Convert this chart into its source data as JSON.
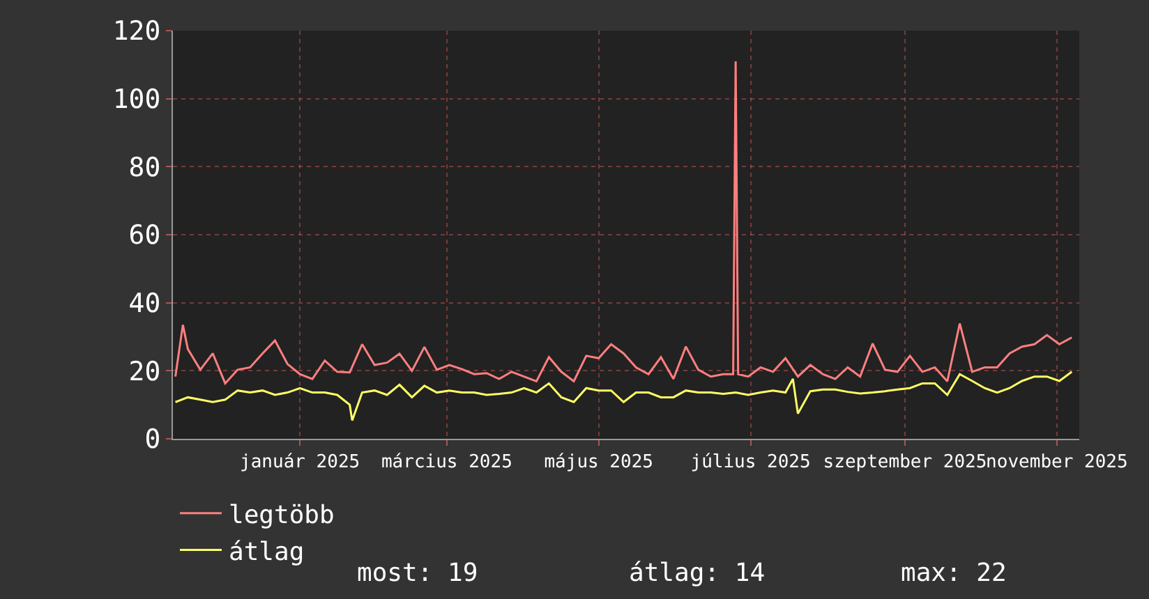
{
  "chart_data": {
    "type": "line",
    "xlim": [
      "2024-11-11",
      "2025-11-10"
    ],
    "ylim": [
      0,
      120
    ],
    "yticks": [
      0,
      20,
      40,
      60,
      80,
      100,
      120
    ],
    "xticks": [
      {
        "value": "2025-01-01",
        "label": "január 2025"
      },
      {
        "value": "2025-03-01",
        "label": "március 2025"
      },
      {
        "value": "2025-05-01",
        "label": "május 2025"
      },
      {
        "value": "2025-07-01",
        "label": "július 2025"
      },
      {
        "value": "2025-09-01",
        "label": "szeptember 2025"
      },
      {
        "value": "2025-11-01",
        "label": "november 2025"
      }
    ],
    "grid": true,
    "legend": "bottom left",
    "line_style": "solid",
    "marker": "none",
    "series": [
      {
        "name": "legtöbb",
        "color": "#ff7f7f",
        "x": [
          "2024-11-12",
          "2024-11-15",
          "2024-11-17",
          "2024-11-22",
          "2024-11-27",
          "2024-12-02",
          "2024-12-07",
          "2024-12-12",
          "2024-12-17",
          "2024-12-22",
          "2024-12-27",
          "2025-01-01",
          "2025-01-06",
          "2025-01-11",
          "2025-01-16",
          "2025-01-21",
          "2025-01-26",
          "2025-01-31",
          "2025-02-05",
          "2025-02-10",
          "2025-02-15",
          "2025-02-20",
          "2025-02-25",
          "2025-03-02",
          "2025-03-07",
          "2025-03-12",
          "2025-03-17",
          "2025-03-22",
          "2025-03-27",
          "2025-04-01",
          "2025-04-06",
          "2025-04-11",
          "2025-04-16",
          "2025-04-21",
          "2025-04-26",
          "2025-05-01",
          "2025-05-06",
          "2025-05-11",
          "2025-05-16",
          "2025-05-21",
          "2025-05-26",
          "2025-05-31",
          "2025-06-05",
          "2025-06-10",
          "2025-06-15",
          "2025-06-20",
          "2025-06-24",
          "2025-06-25",
          "2025-06-26",
          "2025-06-30",
          "2025-07-05",
          "2025-07-10",
          "2025-07-15",
          "2025-07-20",
          "2025-07-25",
          "2025-07-30",
          "2025-08-04",
          "2025-08-09",
          "2025-08-14",
          "2025-08-19",
          "2025-08-24",
          "2025-08-29",
          "2025-09-03",
          "2025-09-08",
          "2025-09-13",
          "2025-09-18",
          "2025-09-23",
          "2025-09-28",
          "2025-10-03",
          "2025-10-08",
          "2025-10-13",
          "2025-10-18",
          "2025-10-23",
          "2025-10-28",
          "2025-11-02",
          "2025-11-07"
        ],
        "values": [
          18.3,
          33.5,
          26.4,
          20.3,
          25.1,
          16.3,
          20.3,
          21.0,
          25.1,
          28.9,
          22,
          19,
          17.6,
          23,
          19.7,
          19.5,
          27.8,
          21.7,
          22.4,
          25,
          20,
          27,
          20.3,
          21.7,
          20.5,
          19.0,
          19.3,
          17.6,
          19.7,
          18.3,
          16.9,
          24,
          19.7,
          16.9,
          24.4,
          23.7,
          27.8,
          25.1,
          21.0,
          19.0,
          24,
          17.6,
          27.1,
          20.3,
          18.3,
          19.0,
          19,
          111,
          19,
          18.3,
          21.0,
          19.7,
          23.7,
          18.3,
          21.7,
          19.0,
          17.6,
          21.0,
          18.3,
          28,
          20.3,
          19.7,
          24.4,
          19.7,
          21.0,
          16.9,
          33.9,
          19.7,
          21.0,
          21.0,
          25.1,
          27.1,
          27.8,
          30.5,
          27.8,
          29.8
        ]
      },
      {
        "name": "átlag",
        "color": "#ffff66",
        "x": [
          "2024-11-12",
          "2024-11-17",
          "2024-11-22",
          "2024-11-27",
          "2024-12-02",
          "2024-12-07",
          "2024-12-12",
          "2024-12-17",
          "2024-12-22",
          "2024-12-27",
          "2025-01-01",
          "2025-01-06",
          "2025-01-11",
          "2025-01-16",
          "2025-01-21",
          "2025-01-22",
          "2025-01-26",
          "2025-01-31",
          "2025-02-05",
          "2025-02-10",
          "2025-02-15",
          "2025-02-20",
          "2025-02-25",
          "2025-03-02",
          "2025-03-07",
          "2025-03-12",
          "2025-03-17",
          "2025-03-22",
          "2025-03-27",
          "2025-04-01",
          "2025-04-06",
          "2025-04-11",
          "2025-04-16",
          "2025-04-21",
          "2025-04-26",
          "2025-05-01",
          "2025-05-06",
          "2025-05-11",
          "2025-05-16",
          "2025-05-21",
          "2025-05-26",
          "2025-05-31",
          "2025-06-05",
          "2025-06-10",
          "2025-06-15",
          "2025-06-20",
          "2025-06-25",
          "2025-06-30",
          "2025-07-05",
          "2025-07-10",
          "2025-07-15",
          "2025-07-18",
          "2025-07-20",
          "2025-07-25",
          "2025-07-30",
          "2025-08-04",
          "2025-08-09",
          "2025-08-14",
          "2025-08-19",
          "2025-08-24",
          "2025-08-29",
          "2025-09-03",
          "2025-09-08",
          "2025-09-13",
          "2025-09-18",
          "2025-09-23",
          "2025-09-28",
          "2025-10-03",
          "2025-10-08",
          "2025-10-13",
          "2025-10-18",
          "2025-10-23",
          "2025-10-28",
          "2025-11-02",
          "2025-11-07"
        ],
        "values": [
          10.8,
          12.2,
          11.5,
          10.8,
          11.5,
          14.2,
          13.6,
          14.2,
          12.9,
          13.6,
          14.9,
          13.6,
          13.6,
          12.9,
          10,
          5.4,
          13.6,
          14.2,
          12.9,
          15.9,
          12.2,
          15.6,
          13.6,
          14.2,
          13.6,
          13.6,
          12.9,
          13.2,
          13.6,
          14.9,
          13.6,
          16.3,
          12.2,
          10.8,
          14.9,
          14.2,
          14.2,
          10.8,
          13.6,
          13.6,
          12.2,
          12.2,
          14.2,
          13.6,
          13.6,
          13.2,
          13.6,
          12.9,
          13.6,
          14.2,
          13.6,
          17.6,
          7.4,
          14.0,
          14.5,
          14.5,
          13.8,
          13.3,
          13.6,
          14.0,
          14.5,
          14.9,
          16.3,
          16.3,
          12.9,
          19.0,
          17.0,
          14.9,
          13.6,
          14.9,
          17.0,
          18.3,
          18.3,
          17.0,
          19.7
        ]
      }
    ],
    "annotations": [
      "most: 19",
      "átlag: 14",
      "max: 22"
    ]
  }
}
